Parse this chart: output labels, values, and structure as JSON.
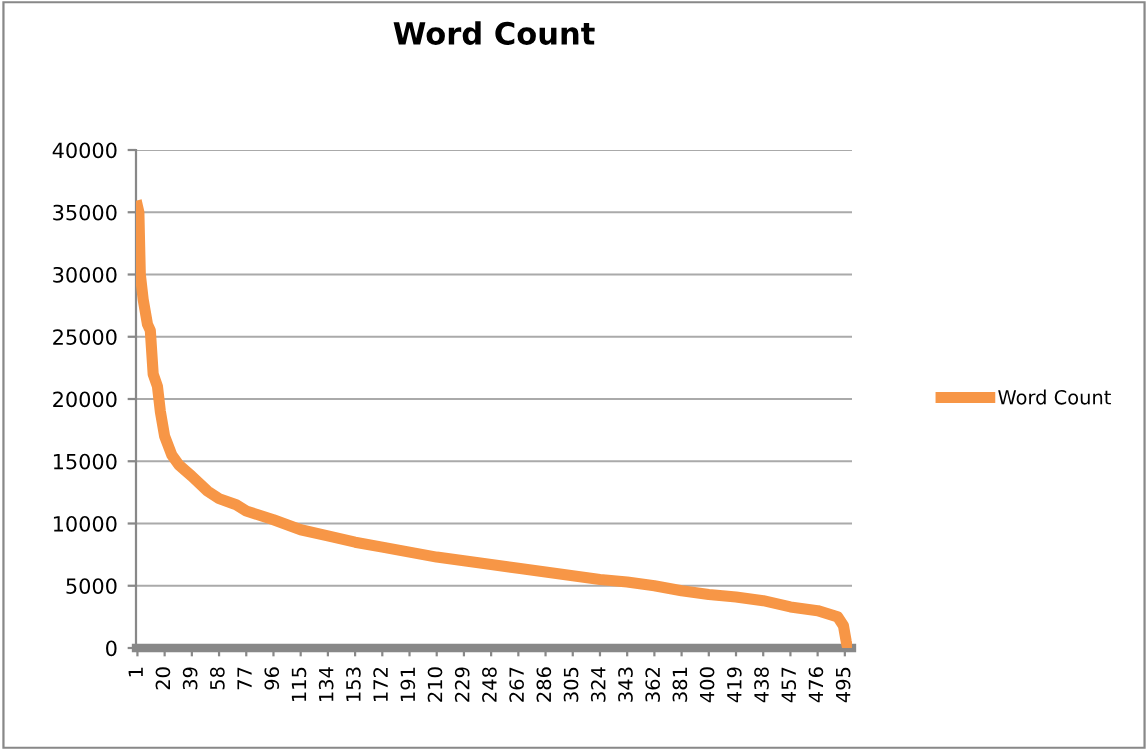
{
  "chart_data": {
    "type": "line",
    "title": "Word Count",
    "series": [
      {
        "name": "Word Count",
        "color": "#f79646",
        "x": [
          1,
          2,
          3,
          5,
          8,
          10,
          12,
          15,
          17,
          20,
          25,
          30,
          39,
          50,
          58,
          70,
          77,
          96,
          115,
          134,
          153,
          172,
          191,
          210,
          229,
          248,
          267,
          286,
          305,
          324,
          343,
          362,
          381,
          400,
          419,
          438,
          457,
          476,
          490,
          494,
          496,
          497
        ],
        "values": [
          35500,
          35000,
          30000,
          28000,
          26000,
          25500,
          22000,
          21000,
          19000,
          17000,
          15500,
          14700,
          13800,
          12600,
          12000,
          11500,
          11000,
          10300,
          9500,
          9000,
          8500,
          8100,
          7700,
          7300,
          7000,
          6700,
          6400,
          6100,
          5800,
          5500,
          5300,
          5000,
          4600,
          4300,
          4100,
          3800,
          3300,
          3000,
          2500,
          1800,
          500,
          0
        ]
      }
    ],
    "xlim": [
      0,
      500
    ],
    "xticks": [
      1,
      20,
      39,
      58,
      77,
      96,
      115,
      134,
      153,
      172,
      191,
      210,
      229,
      248,
      267,
      286,
      305,
      324,
      343,
      362,
      381,
      400,
      419,
      438,
      457,
      476,
      495
    ],
    "ylim": [
      0,
      40000
    ],
    "yticks": [
      0,
      5000,
      10000,
      15000,
      20000,
      25000,
      30000,
      35000,
      40000
    ],
    "grid": "y",
    "legend": "right",
    "marker": "none",
    "line_style": "solid"
  }
}
